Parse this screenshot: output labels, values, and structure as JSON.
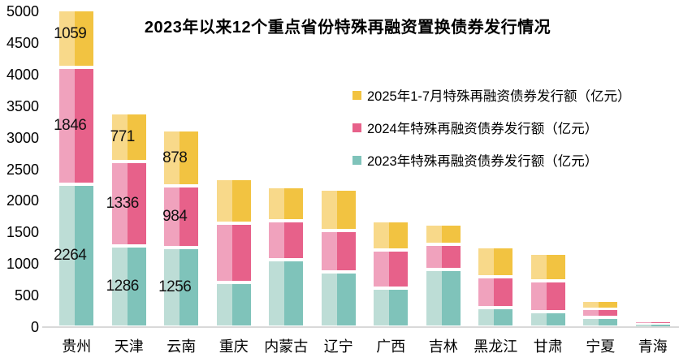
{
  "chart_data": {
    "type": "bar",
    "variant": "stacked",
    "title": "2023年以来12个重点省份特殊再融资置换债券发行情况",
    "categories": [
      "贵州",
      "天津",
      "云南",
      "重庆",
      "内蒙古",
      "辽宁",
      "广西",
      "吉林",
      "黑龙江",
      "甘肃",
      "宁夏",
      "青海"
    ],
    "series": [
      {
        "name": "2025年1-7月特殊再融资债券发行额（亿元）",
        "color_dark": "#F2C341",
        "color_light": "#F8D98A",
        "values": [
          1059,
          771,
          878,
          700,
          540,
          650,
          460,
          315,
          470,
          430,
          125,
          0
        ]
      },
      {
        "name": "2024年特殊再融资债券发行额（亿元）",
        "color_dark": "#E7618A",
        "color_light": "#F0A2BD",
        "values": [
          1846,
          1336,
          984,
          940,
          615,
          660,
          600,
          405,
          485,
          490,
          135,
          40
        ]
      },
      {
        "name": "2023年特殊再融资债券发行额（亿元）",
        "color_dark": "#7FC3BA",
        "color_light": "#BDDDD6",
        "values": [
          2264,
          1286,
          1256,
          710,
          1065,
          870,
          620,
          910,
          315,
          245,
          155,
          55
        ]
      }
    ],
    "data_labels": {
      "shown_for_categories": [
        "贵州",
        "天津",
        "云南"
      ],
      "labels": {
        "贵州": [
          1059,
          1846,
          2264
        ],
        "天津": [
          771,
          1336,
          1286
        ],
        "云南": [
          878,
          984,
          1256
        ]
      }
    },
    "y_axis": {
      "min": 0,
      "max": 5000,
      "tick_step": 500,
      "ticks": [
        5000,
        4500,
        4000,
        3500,
        3000,
        2500,
        2000,
        1500,
        1000,
        500,
        0
      ]
    },
    "legend_position": "right-top",
    "grid": false,
    "axis_line_color": "#D9D9D9",
    "background_color": "#FFFFFF"
  }
}
